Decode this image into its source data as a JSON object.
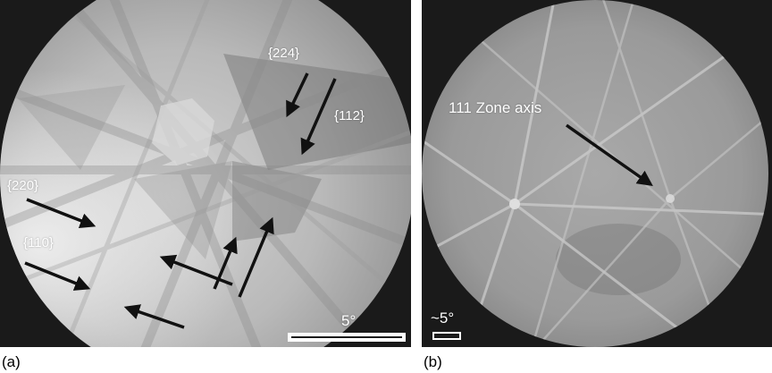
{
  "panel_a": {
    "caption": "(a)",
    "labels": {
      "l224": "{224}",
      "l112": "{112}",
      "l220": "{220}",
      "l110": "{110}"
    },
    "scale_label": "5°"
  },
  "panel_b": {
    "caption": "(b)",
    "zone_label": "111 Zone axis",
    "scale_label": "~5°"
  }
}
